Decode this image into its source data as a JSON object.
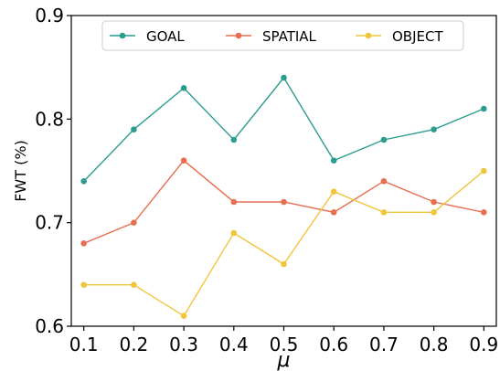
{
  "chart_data": {
    "type": "line",
    "x": [
      0.1,
      0.2,
      0.3,
      0.4,
      0.5,
      0.6,
      0.7,
      0.8,
      0.9
    ],
    "x_tick_labels": [
      "0.1",
      "0.2",
      "0.3",
      "0.4",
      "0.5",
      "0.6",
      "0.7",
      "0.8",
      "0.9"
    ],
    "xlabel": "μ",
    "ylabel": "FWT (%)",
    "ylim": [
      0.6,
      0.9
    ],
    "y_ticks": [
      0.6,
      0.7,
      0.8,
      0.9
    ],
    "y_tick_labels": [
      "0.6",
      "0.7",
      "0.8",
      "0.9"
    ],
    "grid": false,
    "legend": {
      "placement": "top-center",
      "columns": 3
    },
    "series": [
      {
        "name": "GOAL",
        "color": "#2a9d8f",
        "values": [
          0.74,
          0.79,
          0.83,
          0.78,
          0.84,
          0.76,
          0.78,
          0.79,
          0.81
        ]
      },
      {
        "name": "SPATIAL",
        "color": "#e76f51",
        "values": [
          0.68,
          0.7,
          0.76,
          0.72,
          0.72,
          0.71,
          0.74,
          0.72,
          0.71
        ]
      },
      {
        "name": "OBJECT",
        "color": "#f0c53c",
        "values": [
          0.64,
          0.64,
          0.61,
          0.69,
          0.66,
          0.73,
          0.71,
          0.71,
          0.75
        ]
      }
    ]
  }
}
